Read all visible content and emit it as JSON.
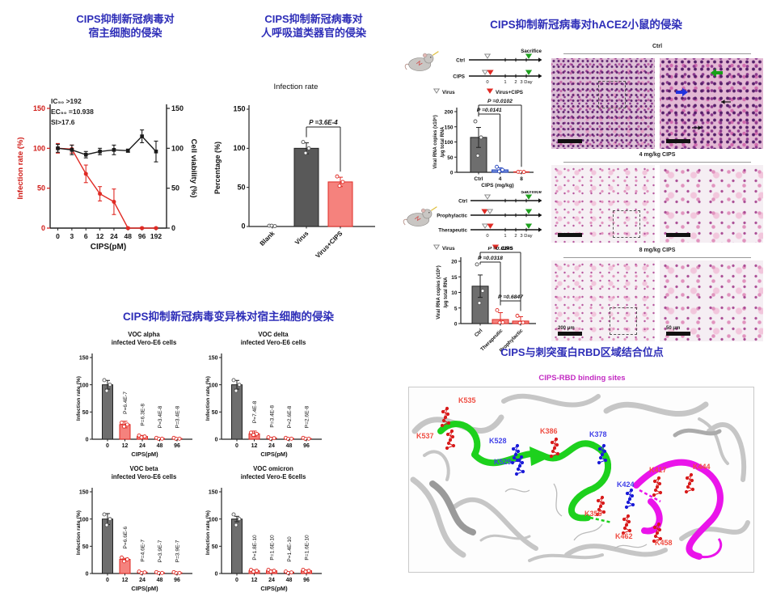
{
  "colors": {
    "title_blue": "#2e2eb8",
    "subtitle_magenta": "#c32cc3",
    "red": "#e02b25",
    "salmon": "#f5827d",
    "gray_bar": "#6e6e6e",
    "dark_gray_bar": "#595959",
    "blue_bar": "#6f8bdb",
    "green_ribbon": "#1dd11d",
    "magenta_ribbon": "#ea14ea"
  },
  "panel_cell": {
    "title": [
      "CIPS抑制新冠病毒对",
      "宿主细胞的侵染"
    ]
  },
  "panel_organoid": {
    "title": [
      "CIPS抑制新冠病毒对",
      "人呼吸道类器官的侵染"
    ]
  },
  "panel_mouse": {
    "title": "CIPS抑制新冠病毒对hACE2小鼠的侵染",
    "timeline1": {
      "sacrifice": "Sacrifice",
      "days": [
        "0",
        "1",
        "2",
        "3 Day"
      ],
      "rows": [
        {
          "label": "Ctrl",
          "marker": "virus"
        },
        {
          "label": "CIPS",
          "marker": "virus_cips"
        }
      ],
      "legend": [
        {
          "type": "open",
          "label": "Virus"
        },
        {
          "type": "filled",
          "label": "Virus+CIPS"
        }
      ]
    },
    "timeline2": {
      "sacrifice": "Sacrifice",
      "days": [
        "0",
        "1",
        "2",
        "3 Day"
      ],
      "rows": [
        {
          "label": "Ctrl",
          "marker": "virus"
        },
        {
          "label": "Prophylactic",
          "marker": "cips_virus"
        },
        {
          "label": "Therapeutic",
          "marker": "virus_cips"
        }
      ],
      "legend": [
        {
          "type": "open",
          "label": "Virus"
        },
        {
          "type": "filled",
          "label": "CIPS"
        }
      ]
    },
    "histology": {
      "groups": [
        {
          "label": "Ctrl"
        },
        {
          "label": "4 mg/kg CIPS"
        },
        {
          "label": "8 mg/kg CIPS"
        }
      ],
      "scale_labels": [
        "200 μm",
        "50 μm"
      ]
    }
  },
  "panel_voc": {
    "title": "CIPS抑制新冠病毒变异株对宿主细胞的侵染"
  },
  "panel_rbd": {
    "title": "CIPS与刺突蛋白RBD区域结合位点",
    "subtitle": "CIPS-RBD binding sites",
    "residues": [
      {
        "name": "K535",
        "color": "red"
      },
      {
        "name": "K537",
        "color": "red"
      },
      {
        "name": "K528",
        "color": "blue"
      },
      {
        "name": "K529",
        "color": "blue"
      },
      {
        "name": "K386",
        "color": "red"
      },
      {
        "name": "K378",
        "color": "blue"
      },
      {
        "name": "K417",
        "color": "red"
      },
      {
        "name": "K444",
        "color": "red"
      },
      {
        "name": "K424",
        "color": "blue"
      },
      {
        "name": "K356",
        "color": "red"
      },
      {
        "name": "K462",
        "color": "red"
      },
      {
        "name": "K458",
        "color": "red"
      }
    ]
  },
  "chart_data": [
    {
      "id": "cell_infection",
      "type": "line",
      "annotations": [
        "IC₅₀ >192",
        "EC₅₀ =10.938",
        "SI>17.6"
      ],
      "x_categories": [
        "0",
        "3",
        "6",
        "12",
        "24",
        "48",
        "96",
        "192"
      ],
      "xlabel": "CIPS(pM)",
      "ylabel_left": "Infection rate (%)",
      "ylabel_right": "Cell viability (%)",
      "yticks": [
        0,
        50,
        100,
        150
      ],
      "ylim": [
        0,
        150
      ],
      "series": [
        {
          "name": "Infection rate",
          "axis": "left",
          "color": "#e02b25",
          "marker": "circle",
          "values": [
            100,
            99,
            68,
            43,
            33,
            0,
            0,
            0
          ],
          "errors": [
            6,
            5,
            11,
            9,
            16,
            1,
            1,
            1
          ]
        },
        {
          "name": "Cell viability",
          "axis": "right",
          "color": "#1a1a1a",
          "marker": "square",
          "values": [
            100,
            98,
            92,
            96,
            98,
            97,
            115,
            96
          ],
          "errors": [
            5,
            6,
            4,
            4,
            6,
            2,
            8,
            13
          ]
        }
      ]
    },
    {
      "id": "organoid",
      "type": "bar",
      "title": "Infection rate",
      "ylabel": "Percentage (%)",
      "yticks": [
        0,
        50,
        100,
        150
      ],
      "ylim": [
        0,
        150
      ],
      "categories": [
        "Blank",
        "Virus",
        "Virus+CIPS"
      ],
      "values": [
        0,
        100,
        57
      ],
      "errors": [
        0,
        7,
        6
      ],
      "points": [
        [
          1,
          0.5,
          1
        ],
        [
          108,
          100,
          94
        ],
        [
          64,
          57,
          52
        ]
      ],
      "bar_colors": [
        "none",
        "#595959",
        "#f5827d"
      ],
      "bar_strokes": [
        "#222",
        "#222",
        "#e02b25"
      ],
      "comparison": {
        "label": "P =3.6E-4",
        "from": 1,
        "to": 2
      }
    },
    {
      "id": "viral_rna_dose",
      "type": "bar",
      "ylabel": [
        "Viral RNA copies (x10⁶)",
        "/μg total RNA"
      ],
      "yticks": [
        0,
        50,
        100,
        150,
        200
      ],
      "ylim": [
        0,
        200
      ],
      "categories": [
        "Ctrl",
        "4",
        "8"
      ],
      "xlabel": "CIPS (mg/kg)",
      "values": [
        115,
        8,
        1
      ],
      "errors": [
        33,
        7,
        1
      ],
      "points": [
        [
          168,
          115,
          55
        ],
        [
          18,
          8,
          3
        ],
        [
          1.5,
          1,
          0.8
        ]
      ],
      "bar_colors": [
        "#6e6e6e",
        "#6f8bdb",
        "#f5827d"
      ],
      "bar_strokes": [
        "#222",
        "#2b4bbf",
        "#e02b25"
      ],
      "comparisons": [
        {
          "label": "P =0.0102",
          "from": 0,
          "to": 2
        },
        {
          "label": "P =0.0141",
          "from": 0,
          "to": 1
        }
      ]
    },
    {
      "id": "viral_rna_regimen",
      "type": "bar",
      "ylabel": [
        "Viral RNA copies (x10⁶)",
        "/μg total RNA"
      ],
      "yticks": [
        0,
        5,
        10,
        15,
        20
      ],
      "ylim": [
        0,
        20
      ],
      "categories": [
        "Ctrl",
        "Therapeutic",
        "Prophylactic"
      ],
      "values": [
        12,
        1.3,
        0.8
      ],
      "errors": [
        3.6,
        2.2,
        1.4
      ],
      "points": [
        [
          19,
          10.5,
          6.6
        ],
        [
          4.3,
          0.4,
          0.3
        ],
        [
          2.5,
          0.3,
          0.2
        ]
      ],
      "bar_colors": [
        "#6e6e6e",
        "#f5827d",
        "#f5827d"
      ],
      "bar_strokes": [
        "#222",
        "#e02b25",
        "#e02b25"
      ],
      "comparisons": [
        {
          "label": "P =0.0245",
          "from": 0,
          "to": 2
        },
        {
          "label": "P =0.0318",
          "from": 0,
          "to": 1
        },
        {
          "label": "P =0.6847",
          "from": 1,
          "to": 2
        }
      ]
    },
    {
      "id": "voc_alpha",
      "type": "bar",
      "title": [
        "VOC alpha",
        "infected Vero-E6 cells"
      ],
      "ylabel": "Infection rate (%)",
      "yticks": [
        0,
        50,
        100,
        150
      ],
      "ylim": [
        0,
        150
      ],
      "categories": [
        "0",
        "12",
        "24",
        "48",
        "96"
      ],
      "xlabel": "CIPS(pM)",
      "values": [
        100,
        27,
        5,
        1,
        1
      ],
      "errors": [
        8,
        6,
        2,
        0.5,
        0.5
      ],
      "p_labels": [
        "",
        "P=6.4E-7",
        "P=6.3E-8",
        "P=3.4E-8",
        "P=3.4E-8"
      ]
    },
    {
      "id": "voc_delta",
      "type": "bar",
      "title": [
        "VOC delta",
        "infected Vero-E6 cells"
      ],
      "ylabel": "Infection rate (%)",
      "yticks": [
        0,
        50,
        100,
        150
      ],
      "ylim": [
        0,
        150
      ],
      "categories": [
        "0",
        "12",
        "24",
        "48",
        "96"
      ],
      "xlabel": "CIPS(pM)",
      "values": [
        100,
        10,
        2,
        1,
        1
      ],
      "errors": [
        8,
        5,
        1.5,
        0.5,
        0.5
      ],
      "p_labels": [
        "",
        "P=7.4E-8",
        "P=3.4E-8",
        "P=2.6E-8",
        "P=2.6E-8"
      ]
    },
    {
      "id": "voc_beta",
      "type": "bar",
      "title": [
        "VOC beta",
        "infected Vero-E6 cells"
      ],
      "ylabel": "Infection rate (%)",
      "yticks": [
        0,
        50,
        100,
        150
      ],
      "ylim": [
        0,
        150
      ],
      "categories": [
        "0",
        "12",
        "24",
        "48",
        "96"
      ],
      "xlabel": "CIPS(pM)",
      "values": [
        100,
        26,
        2,
        1,
        1
      ],
      "errors": [
        10,
        2,
        1,
        0.5,
        0.5
      ],
      "p_labels": [
        "",
        "P=6.6E-6",
        "P=4.6E-7",
        "P=3.9E-7",
        "P=3.9E-7"
      ]
    },
    {
      "id": "voc_omicron",
      "type": "bar",
      "title": [
        "VOC omicron",
        "infected Vero-E 6cells"
      ],
      "ylabel": "Infection rate (%)",
      "yticks": [
        0,
        50,
        100,
        150
      ],
      "ylim": [
        0,
        150
      ],
      "categories": [
        "0",
        "12",
        "24",
        "48",
        "96"
      ],
      "xlabel": "CIPS(pM)",
      "values": [
        100,
        5,
        5,
        2,
        5
      ],
      "errors": [
        5,
        1.5,
        1.5,
        1,
        1.5
      ],
      "p_labels": [
        "",
        "P=1.8E-10",
        "P=1.6E-10",
        "P=1.4E-10",
        "P=1.6E-10"
      ]
    }
  ]
}
